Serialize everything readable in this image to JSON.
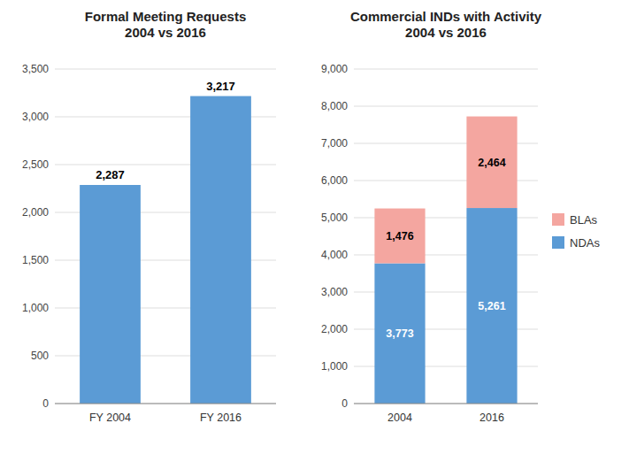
{
  "chart_data": [
    {
      "type": "bar",
      "title": "Formal Meeting Requests\n2004 vs 2016",
      "categories": [
        "FY 2004",
        "FY 2016"
      ],
      "values": [
        2287,
        3217
      ],
      "value_labels": [
        "2,287",
        "3,217"
      ],
      "color": "#5B9BD5",
      "ylim": [
        0,
        3500
      ],
      "yticks": [
        0,
        500,
        {
          "value": 1000,
          "label": "1,000"
        },
        {
          "value": 1500,
          "label": "1,500"
        },
        {
          "value": 2000,
          "label": "2,000"
        },
        {
          "value": 2500,
          "label": "2,500"
        },
        {
          "value": 3000,
          "label": "3,000"
        },
        {
          "value": 3500,
          "label": "3,500"
        }
      ],
      "grid": true,
      "data_labels": true
    },
    {
      "type": "bar",
      "title": "Commercial INDs with Activity\n2004 vs 2016",
      "categories": [
        "2004",
        "2016"
      ],
      "series": [
        {
          "name": "NDAs",
          "color": "#5B9BD5",
          "values": [
            3773,
            5261
          ],
          "value_labels": [
            "3,773",
            "5,261"
          ]
        },
        {
          "name": "BLAs",
          "color": "#F4A6A0",
          "values": [
            1476,
            2464
          ],
          "value_labels": [
            "1,476",
            "2,464"
          ]
        }
      ],
      "stacked": true,
      "ylim": [
        0,
        9000
      ],
      "yticks": [
        0,
        {
          "value": 1000,
          "label": "1,000"
        },
        {
          "value": 2000,
          "label": "2,000"
        },
        {
          "value": 3000,
          "label": "3,000"
        },
        {
          "value": 4000,
          "label": "4,000"
        },
        {
          "value": 5000,
          "label": "5,000"
        },
        {
          "value": 6000,
          "label": "6,000"
        },
        {
          "value": 7000,
          "label": "7,000"
        },
        {
          "value": 8000,
          "label": "8,000"
        },
        {
          "value": 9000,
          "label": "9,000"
        }
      ],
      "grid": true,
      "legend": "right",
      "data_labels": true
    }
  ]
}
